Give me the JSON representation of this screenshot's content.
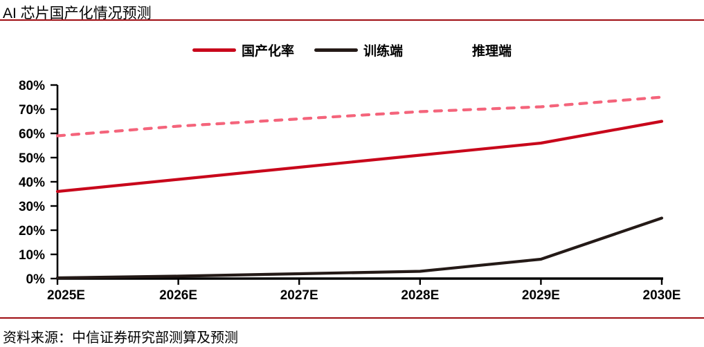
{
  "header": {
    "title": "AI 芯片国产化情况预测"
  },
  "footer": {
    "source": "资料来源：中信证券研究部测算及预测"
  },
  "colors": {
    "rule": "#9E0B10",
    "axis": "#000000",
    "series_guochanhualv": "#C8071B",
    "series_xunlianduan": "#241A17",
    "series_tuiliduan": "#F4647B"
  },
  "chart_data": {
    "type": "line",
    "title": "AI 芯片国产化情况预测",
    "categories": [
      "2025E",
      "2026E",
      "2027E",
      "2028E",
      "2029E",
      "2030E"
    ],
    "series": [
      {
        "name": "国产化率",
        "values": [
          36,
          41,
          46,
          51,
          56,
          65
        ],
        "color": "#C8071B",
        "style": "solid"
      },
      {
        "name": "训练端",
        "values": [
          0.3,
          1,
          2,
          3,
          8,
          25
        ],
        "color": "#241A17",
        "style": "solid"
      },
      {
        "name": "推理端",
        "values": [
          59,
          63,
          66,
          69,
          71,
          75
        ],
        "color": "#F4647B",
        "style": "dashed"
      }
    ],
    "xlabel": "",
    "ylabel": "",
    "ylim": [
      0,
      80
    ],
    "ytick_step": 10,
    "ytick_suffix": "%",
    "grid": false,
    "legend_position": "top"
  }
}
